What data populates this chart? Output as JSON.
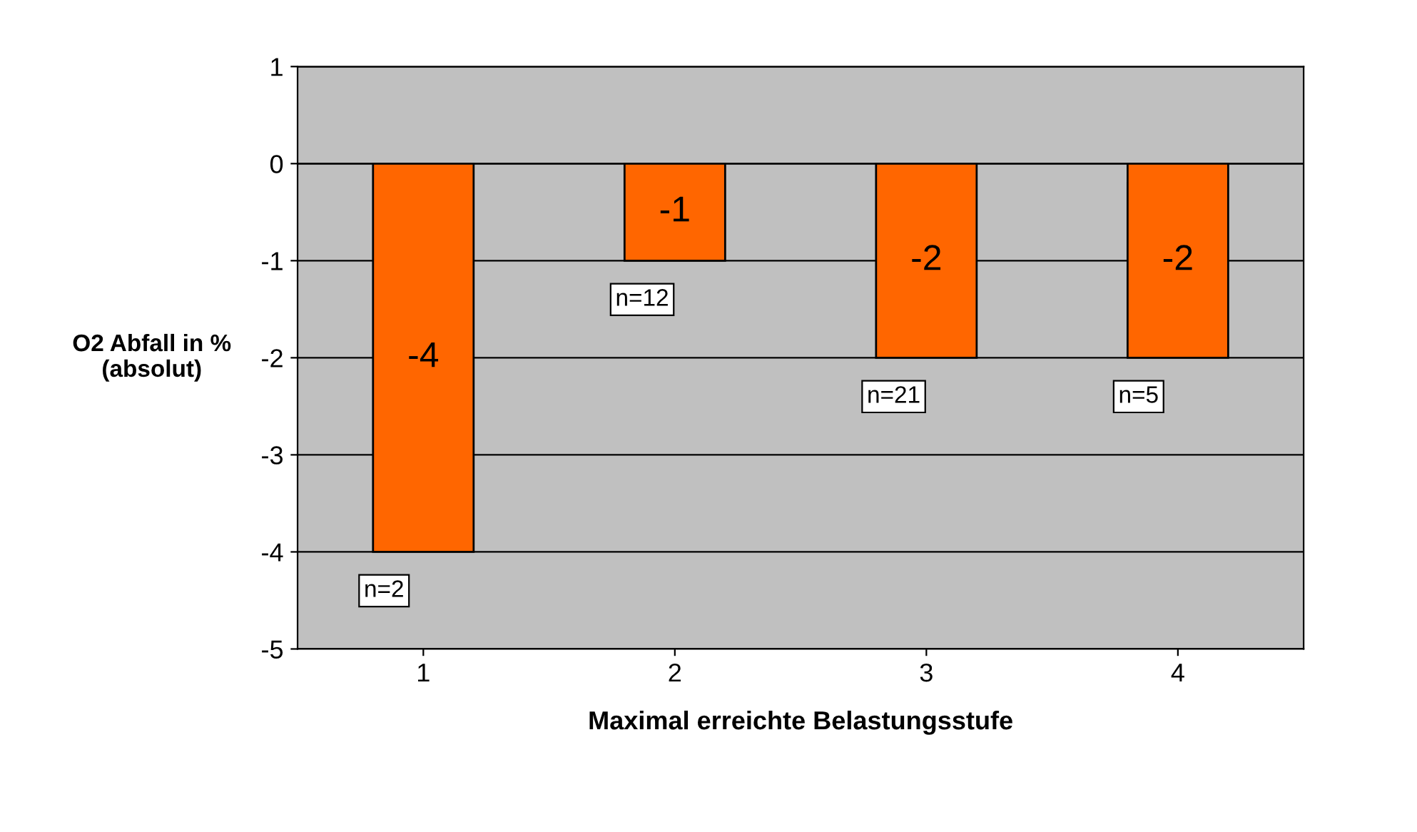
{
  "chart_data": {
    "type": "bar",
    "xlabel": "Maximal erreichte Belastungsstufe",
    "ylabel": "O2 Abfall in %\n(absolut)",
    "categories": [
      "1",
      "2",
      "3",
      "4"
    ],
    "values": [
      -4,
      -1,
      -2,
      -2
    ],
    "color": "#ff6600",
    "ylim": [
      -5,
      1
    ],
    "yticks": [
      -5,
      -4,
      -3,
      -2,
      -1,
      0,
      1
    ],
    "grid": "y",
    "data_labels": true,
    "annotations": [
      {
        "text": "n=2",
        "x": "1",
        "y": -4
      },
      {
        "text": "n=12",
        "x": "2",
        "y": -1
      },
      {
        "text": "n=21",
        "x": "3",
        "y": -2
      },
      {
        "text": "n=5",
        "x": "4",
        "y": -2
      }
    ]
  }
}
